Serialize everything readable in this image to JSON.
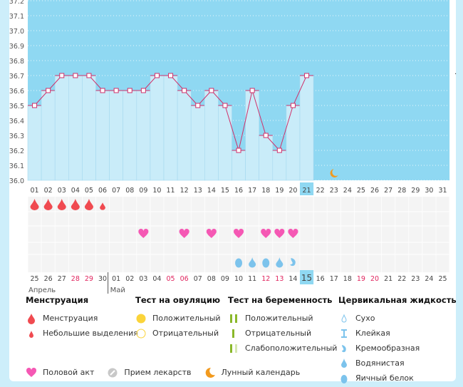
{
  "chart_data": {
    "type": "bar",
    "y_ticks": [
      "37.2",
      "37.1",
      "37.0",
      "36.9",
      "36.8",
      "36.7",
      "36.6",
      "36.5",
      "36.4",
      "36.3",
      "36.2",
      "36.1",
      "36.0"
    ],
    "ylim": [
      36.0,
      37.2
    ],
    "days": [
      "01",
      "02",
      "03",
      "04",
      "05",
      "06",
      "07",
      "08",
      "09",
      "10",
      "11",
      "12",
      "13",
      "14",
      "15",
      "16",
      "17",
      "18",
      "19",
      "20",
      "21",
      "22",
      "23",
      "24",
      "25",
      "26",
      "27",
      "28",
      "29",
      "30",
      "31"
    ],
    "temperatures": [
      36.5,
      36.6,
      36.7,
      36.7,
      36.7,
      36.6,
      36.6,
      36.6,
      36.6,
      36.7,
      36.7,
      36.6,
      36.5,
      36.6,
      36.5,
      36.2,
      36.6,
      36.3,
      36.2,
      36.5,
      36.7
    ],
    "today_index": 20,
    "moon_index": 22,
    "menstruation": {
      "0": "full",
      "1": "full",
      "2": "full",
      "3": "full",
      "4": "full",
      "5": "light"
    },
    "intercourse": [
      8,
      11,
      13,
      15,
      17,
      18,
      19
    ],
    "cervical_fluid": {
      "15": "egg",
      "16": "watery",
      "17": "egg",
      "18": "watery",
      "19": "creamy"
    },
    "dates": [
      "25",
      "26",
      "27",
      "28",
      "29",
      "30",
      "01",
      "02",
      "03",
      "04",
      "05",
      "06",
      "07",
      "08",
      "09",
      "10",
      "11",
      "12",
      "13",
      "14",
      "15",
      "16",
      "17",
      "18",
      "19",
      "20",
      "21",
      "22",
      "23",
      "24",
      "25"
    ],
    "red_dates": [
      3,
      4,
      10,
      11,
      17,
      18,
      24,
      25
    ],
    "months": [
      {
        "label": "Апрель",
        "index": 0
      },
      {
        "label": "Май",
        "index": 6
      }
    ]
  },
  "legend": {
    "menstruation": {
      "title": "Менструация",
      "items": [
        "Менструация",
        "Небольшие выделения"
      ]
    },
    "ovulation": {
      "title": "Тест на овуляцию",
      "items": [
        "Положительный",
        "Отрицательный"
      ]
    },
    "pregnancy": {
      "title": "Тест на беременность",
      "items": [
        "Положительный",
        "Отрицательный",
        "Слабоположительный"
      ]
    },
    "fluid": {
      "title": "Цервикальная жидкость",
      "items": [
        "Сухо",
        "Клейкая",
        "Кремообразная",
        "Водянистая",
        "Яичный белок"
      ]
    },
    "other": [
      "Половой акт",
      "Прием лекарств",
      "Лунный календарь"
    ]
  },
  "colors": {
    "sky": "#8fd8f2",
    "bar": "#c9ecf9",
    "line": "#d0306a",
    "blood": "#f04a50",
    "heart": "#f558b4",
    "fluid": "#7cc3ec",
    "moon": "#f29a1e",
    "green": "#8ab82a"
  }
}
